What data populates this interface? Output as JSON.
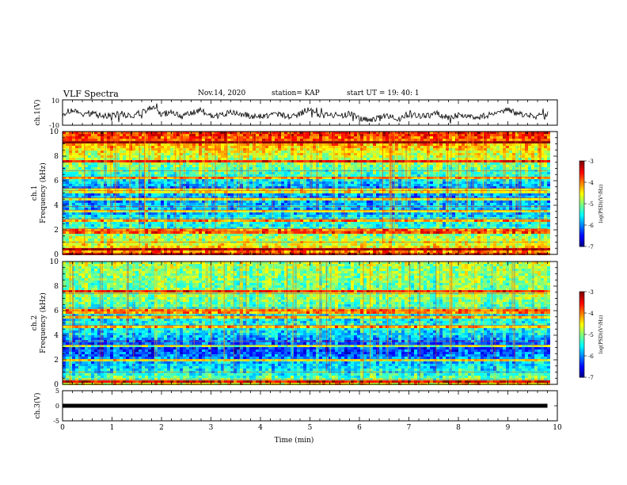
{
  "header": {
    "title": "VLF Spectra",
    "date": "Nov.14, 2020",
    "station": "station= KAP",
    "start": "start  UT =   19: 40: 1"
  },
  "chart_data": [
    {
      "type": "line",
      "name": "ch1-voltage",
      "ylabel": "ch.1(V)",
      "ylim": [
        -10,
        10
      ],
      "xlim": [
        0,
        10
      ],
      "y_ticks": [
        "10",
        "-10"
      ],
      "trace": {
        "t": [
          0.0,
          0.2,
          0.4,
          0.6,
          0.8,
          1.0,
          1.2,
          1.4,
          1.6,
          1.8,
          2.0,
          2.2,
          2.4,
          2.6,
          2.8,
          3.0,
          3.2,
          3.4,
          3.6,
          3.8,
          4.0,
          4.2,
          4.4,
          4.6,
          4.8,
          5.0,
          5.2,
          5.4,
          5.6,
          5.8,
          6.0,
          6.2,
          6.4,
          6.6,
          6.8,
          7.0,
          7.2,
          7.4,
          7.6,
          7.8,
          8.0,
          8.2,
          8.4,
          8.6,
          8.8,
          9.0,
          9.2,
          9.4,
          9.6,
          9.8
        ],
        "v": [
          -1,
          2,
          -2,
          0,
          -3,
          -2,
          -1,
          -3,
          0,
          4,
          -2,
          1,
          -3,
          -1,
          2,
          -3,
          -2,
          0,
          -1,
          -3,
          -3,
          -2,
          -1,
          -4,
          -1,
          4,
          -3,
          -1,
          -3,
          -1,
          -5,
          -6,
          -4,
          -3,
          -5,
          -1,
          -3,
          -2,
          -1,
          -4,
          -2,
          -3,
          -4,
          -2,
          -1,
          2,
          -1,
          -2,
          -3,
          -1
        ]
      }
    },
    {
      "type": "heatmap",
      "name": "ch1-spectrogram",
      "ylabel": "ch.1",
      "ylabel2": "Frequency (kHz)",
      "ylim": [
        0,
        10
      ],
      "xlim": [
        0,
        10
      ],
      "y_ticks": [
        "0",
        "2",
        "4",
        "6",
        "8",
        "10"
      ],
      "colorbar": {
        "label": "log(PSD)(V²/Hz)",
        "range": [
          -7,
          -3
        ],
        "ticks": [
          "-3",
          "-4",
          "-5",
          "-6",
          "-7"
        ]
      },
      "bands_khz": [
        0.5,
        1.0,
        1.9,
        2.1,
        2.9,
        3.6,
        3.9,
        4.6,
        5.2,
        5.4,
        6.3,
        6.8,
        7.6,
        9.2
      ],
      "level_profile": {
        "freq_khz": [
          0,
          0.5,
          1,
          1.5,
          2,
          2.5,
          3,
          3.5,
          4,
          4.5,
          5,
          5.5,
          6,
          6.5,
          7,
          7.5,
          8,
          8.5,
          9,
          9.5,
          10
        ],
        "log_psd": [
          -3.4,
          -4.3,
          -4.6,
          -4.8,
          -5.2,
          -5.4,
          -5.3,
          -5.9,
          -5.6,
          -5.9,
          -5.8,
          -5.9,
          -5.6,
          -5.3,
          -5.1,
          -4.9,
          -4.7,
          -4.5,
          -4.2,
          -3.8,
          -3.6
        ]
      }
    },
    {
      "type": "heatmap",
      "name": "ch2-spectrogram",
      "ylabel": "ch.2",
      "ylabel2": "Frequency (kHz)",
      "ylim": [
        0,
        10
      ],
      "xlim": [
        0,
        10
      ],
      "y_ticks": [
        "0",
        "2",
        "4",
        "6",
        "8",
        "10"
      ],
      "colorbar": {
        "label": "log(PSD)(V²/Hz)",
        "range": [
          -7,
          -3
        ],
        "ticks": [
          "-3",
          "-4",
          "-5",
          "-6",
          "-7"
        ]
      },
      "bands_khz": [
        0.4,
        1.0,
        2.0,
        3.2,
        3.5,
        4.8,
        5.6,
        6.0,
        6.2,
        7.4,
        7.6
      ],
      "level_profile": {
        "freq_khz": [
          0,
          0.5,
          1,
          1.5,
          2,
          2.5,
          3,
          3.5,
          4,
          4.5,
          5,
          5.5,
          6,
          6.5,
          7,
          7.5,
          8,
          8.5,
          9,
          9.5,
          10
        ],
        "log_psd": [
          -4.2,
          -5.0,
          -5.4,
          -5.6,
          -5.8,
          -6.1,
          -6.3,
          -6.1,
          -5.7,
          -5.5,
          -5.4,
          -5.6,
          -5.3,
          -5.2,
          -5.0,
          -4.9,
          -5.1,
          -5.0,
          -4.9,
          -4.9,
          -4.8
        ]
      }
    },
    {
      "type": "line",
      "name": "ch3-voltage",
      "ylabel": "ch.3(V)",
      "ylim": [
        -5,
        5
      ],
      "xlim": [
        0,
        10
      ],
      "y_ticks": [
        "5",
        "0",
        "-5"
      ],
      "trace": {
        "t": [
          0,
          9.8
        ],
        "v": [
          0,
          0
        ]
      }
    }
  ],
  "xaxis": {
    "label": "Time (min)",
    "ticks": [
      "0",
      "1",
      "2",
      "3",
      "4",
      "5",
      "6",
      "7",
      "8",
      "9",
      "10"
    ]
  }
}
